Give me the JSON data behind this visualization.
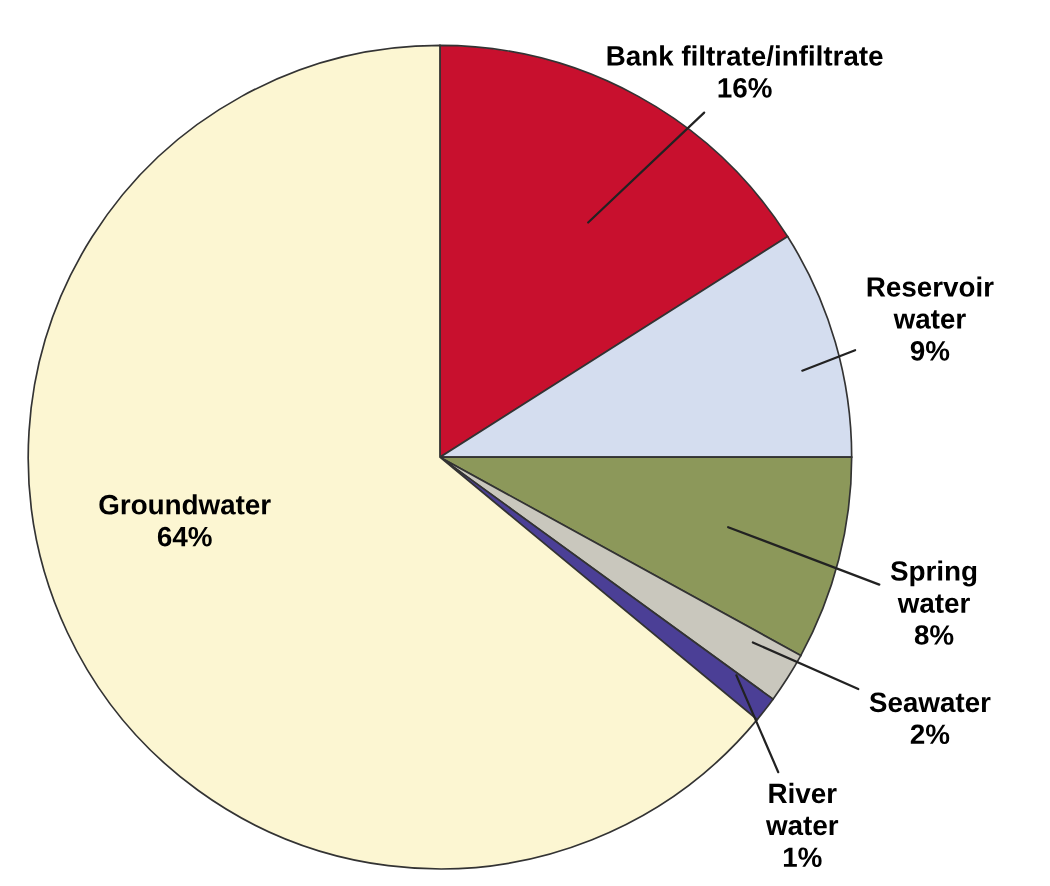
{
  "chart_data": {
    "type": "pie",
    "categories": [
      "Bank filtrate/infiltrate",
      "Reservoir\nwater",
      "Spring\nwater",
      "Seawater",
      "River\nwater",
      "Groundwater"
    ],
    "values": [
      16,
      9,
      8,
      2,
      1,
      64
    ],
    "colors": [
      "#c8102e",
      "#d4ddef",
      "#8c985a",
      "#c9c7bd",
      "#4b3f96",
      "#fcf6d2"
    ],
    "value_labels": [
      "16%",
      "9%",
      "8%",
      "2%",
      "1%",
      "64%"
    ]
  }
}
